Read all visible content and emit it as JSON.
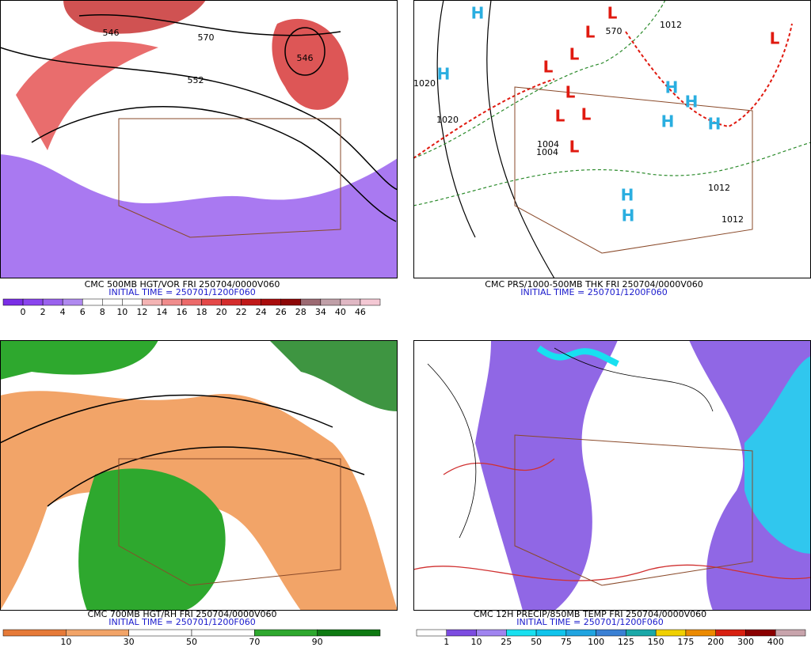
{
  "panels": [
    {
      "caption": "CMC 500MB HGT/VOR FRI 250704/0000V060",
      "initial_time": "INITIAL TIME = 250701/1200F060",
      "contour_labels": [
        "570",
        "552",
        "546",
        "546"
      ],
      "colorbar": {
        "labels": [
          "0",
          "2",
          "4",
          "6",
          "8",
          "10",
          "12",
          "14",
          "16",
          "18",
          "20",
          "22",
          "24",
          "26",
          "28",
          "34",
          "40",
          "46"
        ],
        "colors": [
          "#7a2ee6",
          "#8a45ee",
          "#9a62ee",
          "#b08af0",
          "#ffffff",
          "#ffffff",
          "#ffffff",
          "#f4b4b4",
          "#f08c8c",
          "#ec6a6a",
          "#e44848",
          "#d42c2c",
          "#c01818",
          "#a80c0c",
          "#8c0606",
          "#9c6a72",
          "#c0a0a8",
          "#e0b8c4",
          "#f4c8d4"
        ]
      }
    },
    {
      "caption": "CMC PRS/1000-500MB THK FRI 250704/0000V060",
      "initial_time": "INITIAL TIME = 250701/1200F060",
      "contour_labels": [
        "1020",
        "1020",
        "1012",
        "1012",
        "1012",
        "1004",
        "1004",
        "570"
      ],
      "markers": [
        "H",
        "H",
        "H",
        "H",
        "H",
        "H",
        "H",
        "H",
        "L",
        "L",
        "L",
        "L",
        "L",
        "L",
        "L",
        "L",
        "L"
      ],
      "marker_colors": {
        "H": "#2aaee0",
        "L": "#e01a10"
      }
    },
    {
      "caption": "CMC 700MB HGT/RH FRI 250704/0000V060",
      "initial_time": "INITIAL TIME = 250701/1200F060",
      "colorbar": {
        "labels": [
          "10",
          "30",
          "50",
          "70",
          "90"
        ],
        "colors": [
          "#e67a38",
          "#f2a468",
          "#ffffff",
          "#ffffff",
          "#2ea82e",
          "#0e7a12"
        ]
      }
    },
    {
      "caption": "CMC 12H PRECIP/850MB TEMP FRI 250704/0000V060",
      "initial_time": "INITIAL TIME = 250701/1200F060",
      "colorbar": {
        "labels": [
          "1",
          "10",
          "25",
          "50",
          "75",
          "100",
          "125",
          "150",
          "175",
          "200",
          "300",
          "400"
        ],
        "colors": [
          "#ffffff",
          "#7c4ce0",
          "#a084f0",
          "#18e0f0",
          "#10c4ec",
          "#20a4e0",
          "#3a80d4",
          "#1aa8a8",
          "#f0d000",
          "#ec8a00",
          "#d82010",
          "#8a0000",
          "#c8a4ac"
        ]
      }
    }
  ]
}
